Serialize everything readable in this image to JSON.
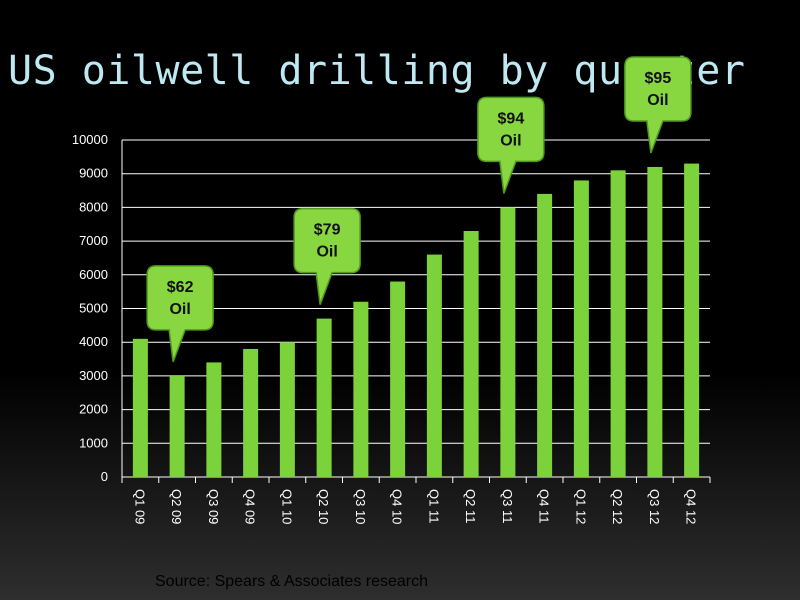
{
  "page": {
    "title": "US oilwell drilling by quarter",
    "source": "Source:  Spears & Associates research"
  },
  "colors": {
    "bar": "#7cd23a",
    "callout_fill": "#88d640",
    "callout_stroke": "#4f9a1f",
    "grid": "#ffffff",
    "title": "#bfe9f2"
  },
  "chart_data": {
    "type": "bar",
    "title": "US oilwell drilling by quarter",
    "xlabel": "",
    "ylabel": "",
    "ylim": [
      0,
      10000
    ],
    "yticks": [
      0,
      1000,
      2000,
      3000,
      4000,
      5000,
      6000,
      7000,
      8000,
      9000,
      10000
    ],
    "grid": true,
    "categories": [
      "Q1 09",
      "Q2 09",
      "Q3 09",
      "Q4 09",
      "Q1 10",
      "Q2 10",
      "Q3 10",
      "Q4 10",
      "Q1 11",
      "Q2 11",
      "Q3 11",
      "Q4 11",
      "Q1 12",
      "Q2 12",
      "Q3 12",
      "Q4 12"
    ],
    "values": [
      4100,
      3000,
      3400,
      3800,
      4000,
      4700,
      5200,
      5800,
      6600,
      7300,
      8000,
      8400,
      8800,
      9100,
      9200,
      9300
    ],
    "annotations": [
      {
        "category": "Q2 09",
        "line1": "$62",
        "line2": "Oil"
      },
      {
        "category": "Q2 10",
        "line1": "$79",
        "line2": "Oil"
      },
      {
        "category": "Q3 11",
        "line1": "$94",
        "line2": "Oil"
      },
      {
        "category": "Q3 12",
        "line1": "$95",
        "line2": "Oil"
      }
    ]
  }
}
